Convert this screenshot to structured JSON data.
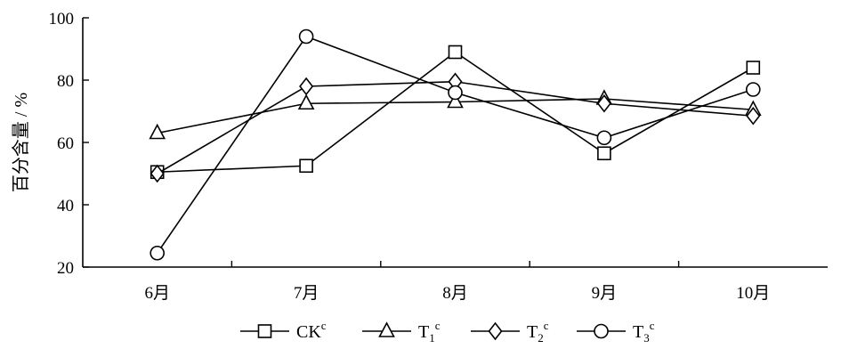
{
  "chart_data": {
    "type": "line",
    "categories": [
      "6月",
      "7月",
      "8月",
      "9月",
      "10月"
    ],
    "ylabel": "百分含量 / %",
    "ylim": [
      20,
      100
    ],
    "yticks": [
      20,
      40,
      60,
      80,
      100
    ],
    "grid": false,
    "legend_position": "bottom",
    "series": [
      {
        "name": "CK",
        "sup": "c",
        "marker": "square",
        "values": [
          50.5,
          52.5,
          89,
          56.5,
          84
        ]
      },
      {
        "name": "T",
        "sub": "1",
        "sup": "c",
        "marker": "triangle",
        "values": [
          63,
          72.5,
          73,
          74,
          70.5
        ]
      },
      {
        "name": "T",
        "sub": "2",
        "sup": "c",
        "marker": "diamond",
        "values": [
          50,
          78,
          79.5,
          72.5,
          68.5
        ]
      },
      {
        "name": "T",
        "sub": "3",
        "sup": "c",
        "marker": "circle",
        "values": [
          24.5,
          94,
          76,
          61.5,
          77
        ]
      }
    ]
  }
}
